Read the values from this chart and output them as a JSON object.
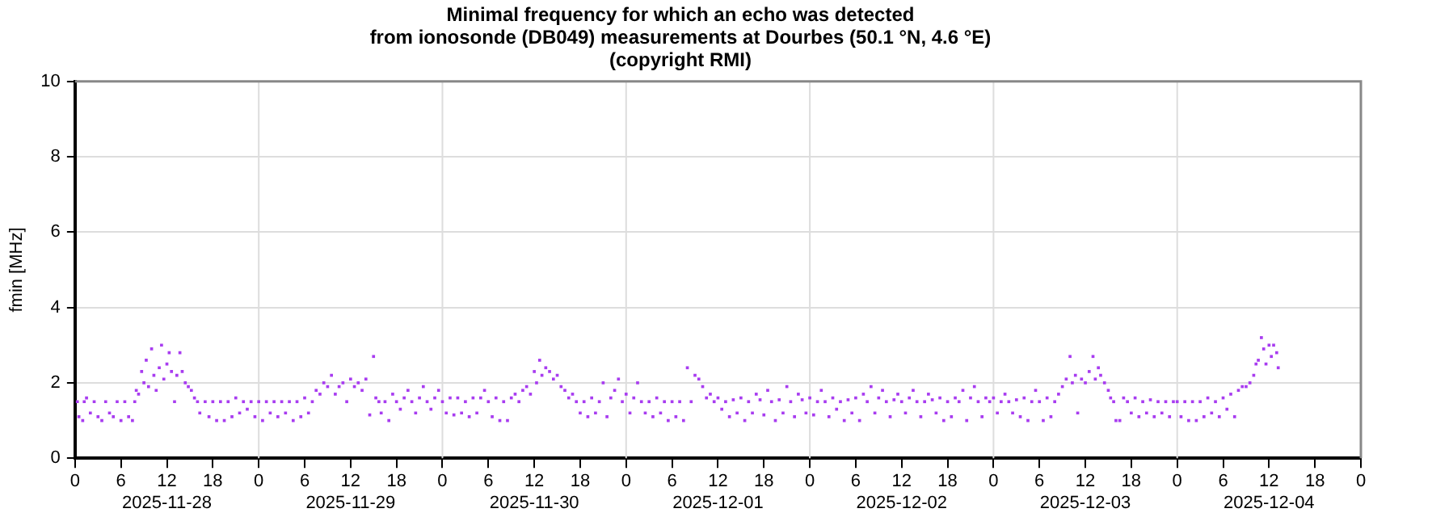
{
  "chart_data": {
    "type": "scatter",
    "title": "Minimal frequency for which an echo was detected\nfrom ionosonde (DB049) measurements at Dourbes (50.1 °N, 4.6 °E)\n(copyright RMI)",
    "ylabel": "fmin [MHz]",
    "xlim": [
      "2025-11-28T00:00",
      "2025-12-05T00:00"
    ],
    "ylim": [
      0,
      10
    ],
    "yticks": [
      0,
      2,
      4,
      6,
      8,
      10
    ],
    "xticks": [
      {
        "value": "2025-11-28T00:00",
        "label": "0"
      },
      {
        "value": "2025-11-28T06:00",
        "label": "6"
      },
      {
        "value": "2025-11-28T12:00",
        "label": "12\n2025-11-28"
      },
      {
        "value": "2025-11-28T18:00",
        "label": "18"
      },
      {
        "value": "2025-11-29T00:00",
        "label": "0"
      },
      {
        "value": "2025-11-29T06:00",
        "label": "6"
      },
      {
        "value": "2025-11-29T12:00",
        "label": "12\n2025-11-29"
      },
      {
        "value": "2025-11-29T18:00",
        "label": "18"
      },
      {
        "value": "2025-11-30T00:00",
        "label": "0"
      },
      {
        "value": "2025-11-30T06:00",
        "label": "6"
      },
      {
        "value": "2025-11-30T12:00",
        "label": "12\n2025-11-30"
      },
      {
        "value": "2025-11-30T18:00",
        "label": "18"
      },
      {
        "value": "2025-12-01T00:00",
        "label": "0"
      },
      {
        "value": "2025-12-01T06:00",
        "label": "6"
      },
      {
        "value": "2025-12-01T12:00",
        "label": "12\n2025-12-01"
      },
      {
        "value": "2025-12-01T18:00",
        "label": "18"
      },
      {
        "value": "2025-12-02T00:00",
        "label": "0"
      },
      {
        "value": "2025-12-02T06:00",
        "label": "6"
      },
      {
        "value": "2025-12-02T12:00",
        "label": "12\n2025-12-02"
      },
      {
        "value": "2025-12-02T18:00",
        "label": "18"
      },
      {
        "value": "2025-12-03T00:00",
        "label": "0"
      },
      {
        "value": "2025-12-03T06:00",
        "label": "6"
      },
      {
        "value": "2025-12-03T12:00",
        "label": "12\n2025-12-03"
      },
      {
        "value": "2025-12-03T18:00",
        "label": "18"
      },
      {
        "value": "2025-12-04T00:00",
        "label": "0"
      },
      {
        "value": "2025-12-04T06:00",
        "label": "6"
      },
      {
        "value": "2025-12-04T12:00",
        "label": "12\n2025-12-04"
      },
      {
        "value": "2025-12-04T18:00",
        "label": "18"
      },
      {
        "value": "2025-12-05T00:00",
        "label": "0"
      }
    ],
    "grid": "y",
    "marker": "square",
    "legend": false,
    "ref_lines": [
      {
        "axis": "x",
        "value": "2025-11-29T00:00",
        "color": "#dddddd"
      },
      {
        "axis": "x",
        "value": "2025-11-30T00:00",
        "color": "#dddddd"
      },
      {
        "axis": "x",
        "value": "2025-12-01T00:00",
        "color": "#dddddd"
      },
      {
        "axis": "x",
        "value": "2025-12-02T00:00",
        "color": "#dddddd"
      },
      {
        "axis": "x",
        "value": "2025-12-03T00:00",
        "color": "#dddddd"
      },
      {
        "axis": "x",
        "value": "2025-12-04T00:00",
        "color": "#dddddd"
      }
    ],
    "series": [
      {
        "color": "#a83cf0",
        "x": [
          "2025-11-28T00:18",
          "2025-11-28T00:30",
          "2025-11-28T01:00",
          "2025-11-28T01:12",
          "2025-11-28T01:30",
          "2025-11-28T02:00",
          "2025-11-28T02:30",
          "2025-11-28T03:00",
          "2025-11-28T03:30",
          "2025-11-28T04:00",
          "2025-11-28T04:30",
          "2025-11-28T05:00",
          "2025-11-28T05:30",
          "2025-11-28T06:00",
          "2025-11-28T06:30",
          "2025-11-28T07:00",
          "2025-11-28T07:30",
          "2025-11-28T07:48",
          "2025-11-28T08:00",
          "2025-11-28T08:18",
          "2025-11-28T08:42",
          "2025-11-28T09:00",
          "2025-11-28T09:18",
          "2025-11-28T09:36",
          "2025-11-28T10:00",
          "2025-11-28T10:18",
          "2025-11-28T10:36",
          "2025-11-28T11:00",
          "2025-11-28T11:18",
          "2025-11-28T11:36",
          "2025-11-28T12:00",
          "2025-11-28T12:18",
          "2025-11-28T12:36",
          "2025-11-28T13:00",
          "2025-11-28T13:18",
          "2025-11-28T13:42",
          "2025-11-28T14:00",
          "2025-11-28T14:24",
          "2025-11-28T14:48",
          "2025-11-28T15:12",
          "2025-11-28T15:36",
          "2025-11-28T16:00",
          "2025-11-28T16:18",
          "2025-11-28T17:00",
          "2025-11-28T17:30",
          "2025-11-28T18:00",
          "2025-11-28T18:30",
          "2025-11-28T19:00",
          "2025-11-28T19:30",
          "2025-11-28T20:00",
          "2025-11-28T20:30",
          "2025-11-28T21:00",
          "2025-11-28T21:30",
          "2025-11-28T22:00",
          "2025-11-28T22:30",
          "2025-11-28T23:00",
          "2025-11-28T23:30",
          "2025-11-29T00:00",
          "2025-11-29T00:30",
          "2025-11-29T01:00",
          "2025-11-29T01:30",
          "2025-11-29T02:00",
          "2025-11-29T02:30",
          "2025-11-29T03:00",
          "2025-11-29T03:30",
          "2025-11-29T04:00",
          "2025-11-29T04:30",
          "2025-11-29T05:00",
          "2025-11-29T05:30",
          "2025-11-29T06:00",
          "2025-11-29T06:30",
          "2025-11-29T07:00",
          "2025-11-29T07:30",
          "2025-11-29T08:00",
          "2025-11-29T08:30",
          "2025-11-29T09:00",
          "2025-11-29T09:30",
          "2025-11-29T10:00",
          "2025-11-29T10:30",
          "2025-11-29T11:00",
          "2025-11-29T11:30",
          "2025-11-29T12:00",
          "2025-11-29T12:30",
          "2025-11-29T13:00",
          "2025-11-29T13:30",
          "2025-11-29T14:00",
          "2025-11-29T14:30",
          "2025-11-29T15:00",
          "2025-11-29T15:18",
          "2025-11-29T15:42",
          "2025-11-29T16:00",
          "2025-11-29T16:30",
          "2025-11-29T17:00",
          "2025-11-29T17:30",
          "2025-11-29T18:00",
          "2025-11-29T18:30",
          "2025-11-29T19:00",
          "2025-11-29T19:30",
          "2025-11-29T20:00",
          "2025-11-29T20:30",
          "2025-11-29T21:00",
          "2025-11-29T21:30",
          "2025-11-29T22:00",
          "2025-11-29T22:30",
          "2025-11-29T23:00",
          "2025-11-29T23:30",
          "2025-11-30T00:00",
          "2025-11-30T00:30",
          "2025-11-30T01:00",
          "2025-11-30T01:30",
          "2025-11-30T02:00",
          "2025-11-30T02:30",
          "2025-11-30T03:00",
          "2025-11-30T03:30",
          "2025-11-30T04:00",
          "2025-11-30T04:30",
          "2025-11-30T05:00",
          "2025-11-30T05:30",
          "2025-11-30T06:00",
          "2025-11-30T06:30",
          "2025-11-30T07:00",
          "2025-11-30T07:30",
          "2025-11-30T08:00",
          "2025-11-30T08:30",
          "2025-11-30T09:00",
          "2025-11-30T09:30",
          "2025-11-30T10:00",
          "2025-11-30T10:30",
          "2025-11-30T11:00",
          "2025-11-30T11:30",
          "2025-11-30T12:00",
          "2025-11-30T12:18",
          "2025-11-30T12:42",
          "2025-11-30T13:00",
          "2025-11-30T13:30",
          "2025-11-30T14:00",
          "2025-11-30T14:30",
          "2025-11-30T15:00",
          "2025-11-30T15:30",
          "2025-11-30T16:00",
          "2025-11-30T16:30",
          "2025-11-30T17:00",
          "2025-11-30T17:30",
          "2025-11-30T18:00",
          "2025-11-30T18:30",
          "2025-11-30T19:00",
          "2025-11-30T19:30",
          "2025-11-30T20:00",
          "2025-11-30T20:30",
          "2025-11-30T21:00",
          "2025-11-30T21:30",
          "2025-11-30T22:00",
          "2025-11-30T22:30",
          "2025-11-30T23:00",
          "2025-11-30T23:30",
          "2025-12-01T00:00",
          "2025-12-01T00:30",
          "2025-12-01T01:00",
          "2025-12-01T01:30",
          "2025-12-01T02:00",
          "2025-12-01T02:30",
          "2025-12-01T03:00",
          "2025-12-01T03:30",
          "2025-12-01T04:00",
          "2025-12-01T04:30",
          "2025-12-01T05:00",
          "2025-12-01T05:30",
          "2025-12-01T06:00",
          "2025-12-01T06:30",
          "2025-12-01T07:00",
          "2025-12-01T07:30",
          "2025-12-01T08:00",
          "2025-12-01T08:30",
          "2025-12-01T09:00",
          "2025-12-01T09:30",
          "2025-12-01T10:00",
          "2025-12-01T10:30",
          "2025-12-01T11:00",
          "2025-12-01T11:30",
          "2025-12-01T12:00",
          "2025-12-01T12:30",
          "2025-12-01T13:00",
          "2025-12-01T13:30",
          "2025-12-01T14:00",
          "2025-12-01T14:30",
          "2025-12-01T15:00",
          "2025-12-01T15:30",
          "2025-12-01T16:00",
          "2025-12-01T16:30",
          "2025-12-01T17:00",
          "2025-12-01T17:30",
          "2025-12-01T18:00",
          "2025-12-01T18:30",
          "2025-12-01T19:00",
          "2025-12-01T19:30",
          "2025-12-01T20:00",
          "2025-12-01T20:30",
          "2025-12-01T21:00",
          "2025-12-01T21:30",
          "2025-12-01T22:00",
          "2025-12-01T22:30",
          "2025-12-01T23:00",
          "2025-12-01T23:30",
          "2025-12-02T00:00",
          "2025-12-02T00:30",
          "2025-12-02T01:00",
          "2025-12-02T01:30",
          "2025-12-02T02:00",
          "2025-12-02T02:30",
          "2025-12-02T03:00",
          "2025-12-02T03:30",
          "2025-12-02T04:00",
          "2025-12-02T04:30",
          "2025-12-02T05:00",
          "2025-12-02T05:30",
          "2025-12-02T06:00",
          "2025-12-02T06:30",
          "2025-12-02T07:00",
          "2025-12-02T07:30",
          "2025-12-02T08:00",
          "2025-12-02T08:30",
          "2025-12-02T09:00",
          "2025-12-02T09:30",
          "2025-12-02T10:00",
          "2025-12-02T10:30",
          "2025-12-02T11:00",
          "2025-12-02T11:30",
          "2025-12-02T12:00",
          "2025-12-02T12:30",
          "2025-12-02T13:00",
          "2025-12-02T13:30",
          "2025-12-02T14:00",
          "2025-12-02T14:30",
          "2025-12-02T15:00",
          "2025-12-02T15:30",
          "2025-12-02T16:00",
          "2025-12-02T16:30",
          "2025-12-02T17:00",
          "2025-12-02T17:30",
          "2025-12-02T18:00",
          "2025-12-02T18:30",
          "2025-12-02T19:00",
          "2025-12-02T19:30",
          "2025-12-02T20:00",
          "2025-12-02T20:30",
          "2025-12-02T21:00",
          "2025-12-02T21:30",
          "2025-12-02T22:00",
          "2025-12-02T22:30",
          "2025-12-02T23:00",
          "2025-12-02T23:30",
          "2025-12-03T00:00",
          "2025-12-03T00:30",
          "2025-12-03T01:00",
          "2025-12-03T01:30",
          "2025-12-03T02:00",
          "2025-12-03T02:30",
          "2025-12-03T03:00",
          "2025-12-03T03:30",
          "2025-12-03T04:00",
          "2025-12-03T04:30",
          "2025-12-03T05:00",
          "2025-12-03T05:30",
          "2025-12-03T06:00",
          "2025-12-03T06:30",
          "2025-12-03T07:00",
          "2025-12-03T07:30",
          "2025-12-03T08:00",
          "2025-12-03T08:30",
          "2025-12-03T09:00",
          "2025-12-03T09:30",
          "2025-12-03T10:00",
          "2025-12-03T10:18",
          "2025-12-03T10:42",
          "2025-12-03T11:00",
          "2025-12-03T11:30",
          "2025-12-03T12:00",
          "2025-12-03T12:30",
          "2025-12-03T13:00",
          "2025-12-03T13:18",
          "2025-12-03T13:42",
          "2025-12-03T14:00",
          "2025-12-03T14:30",
          "2025-12-03T15:00",
          "2025-12-03T15:18",
          "2025-12-03T15:42",
          "2025-12-03T16:00",
          "2025-12-03T16:30",
          "2025-12-03T17:00",
          "2025-12-03T17:30",
          "2025-12-03T18:00",
          "2025-12-03T18:30",
          "2025-12-03T19:00",
          "2025-12-03T19:30",
          "2025-12-03T20:00",
          "2025-12-03T20:30",
          "2025-12-03T21:00",
          "2025-12-03T21:30",
          "2025-12-03T22:00",
          "2025-12-03T22:30",
          "2025-12-03T23:00",
          "2025-12-03T23:30",
          "2025-12-04T00:00",
          "2025-12-04T00:30",
          "2025-12-04T01:00",
          "2025-12-04T01:30",
          "2025-12-04T02:00",
          "2025-12-04T02:30",
          "2025-12-04T03:00",
          "2025-12-04T03:30",
          "2025-12-04T04:00",
          "2025-12-04T04:30",
          "2025-12-04T05:00",
          "2025-12-04T05:30",
          "2025-12-04T06:00",
          "2025-12-04T06:30",
          "2025-12-04T07:00",
          "2025-12-04T07:30",
          "2025-12-04T08:00",
          "2025-12-04T08:30",
          "2025-12-04T09:00",
          "2025-12-04T09:30",
          "2025-12-04T10:00",
          "2025-12-04T10:18",
          "2025-12-04T10:36",
          "2025-12-04T11:00",
          "2025-12-04T11:18",
          "2025-12-04T11:36",
          "2025-12-04T12:00",
          "2025-12-04T12:18",
          "2025-12-04T12:36",
          "2025-12-04T13:00",
          "2025-12-04T13:12"
        ],
        "values": [
          1.5,
          1.1,
          1.0,
          1.5,
          1.6,
          1.2,
          1.5,
          1.1,
          1.0,
          1.5,
          1.2,
          1.1,
          1.5,
          1.0,
          1.5,
          1.1,
          1.0,
          1.5,
          1.8,
          1.7,
          2.3,
          2.0,
          2.6,
          1.9,
          2.9,
          2.2,
          1.8,
          2.4,
          3.0,
          2.1,
          2.5,
          2.8,
          2.3,
          1.5,
          2.2,
          2.8,
          2.3,
          2.0,
          1.9,
          1.8,
          1.6,
          1.5,
          1.2,
          1.5,
          1.1,
          1.5,
          1.0,
          1.5,
          1.0,
          1.5,
          1.1,
          1.6,
          1.2,
          1.5,
          1.3,
          1.5,
          1.1,
          1.5,
          1.0,
          1.5,
          1.2,
          1.5,
          1.1,
          1.5,
          1.2,
          1.5,
          1.0,
          1.5,
          1.1,
          1.6,
          1.2,
          1.5,
          1.8,
          1.7,
          2.0,
          1.9,
          2.2,
          1.7,
          1.9,
          2.0,
          1.5,
          2.1,
          1.9,
          2.0,
          1.8,
          2.1,
          1.15,
          2.7,
          1.6,
          1.5,
          1.2,
          1.5,
          1.0,
          1.7,
          1.5,
          1.3,
          1.6,
          1.8,
          1.5,
          1.2,
          1.6,
          1.9,
          1.5,
          1.3,
          1.6,
          1.8,
          1.5,
          1.2,
          1.6,
          1.15,
          1.6,
          1.2,
          1.5,
          1.1,
          1.6,
          1.2,
          1.6,
          1.8,
          1.5,
          1.1,
          1.6,
          1.0,
          1.5,
          1.0,
          1.6,
          1.7,
          1.5,
          1.8,
          1.9,
          1.7,
          2.3,
          2.0,
          2.6,
          2.2,
          2.4,
          2.3,
          2.1,
          2.2,
          1.9,
          1.8,
          1.6,
          1.7,
          1.5,
          1.2,
          1.5,
          1.1,
          1.6,
          1.2,
          1.5,
          2.0,
          1.1,
          1.6,
          1.8,
          2.1,
          1.5,
          1.7,
          1.2,
          1.6,
          2.0,
          1.5,
          1.2,
          1.5,
          1.1,
          1.6,
          1.2,
          1.5,
          1.0,
          1.5,
          1.1,
          1.5,
          1.0,
          2.4,
          1.5,
          2.2,
          2.1,
          1.9,
          1.6,
          1.7,
          1.5,
          1.6,
          1.3,
          1.5,
          1.1,
          1.55,
          1.2,
          1.6,
          1.0,
          1.5,
          1.2,
          1.7,
          1.55,
          1.15,
          1.8,
          1.5,
          1.0,
          1.55,
          1.2,
          1.9,
          1.5,
          1.1,
          1.7,
          1.55,
          1.2,
          1.6,
          1.15,
          1.5,
          1.8,
          1.5,
          1.1,
          1.6,
          1.3,
          1.5,
          1.0,
          1.55,
          1.2,
          1.6,
          1.0,
          1.7,
          1.5,
          1.9,
          1.2,
          1.6,
          1.8,
          1.5,
          1.1,
          1.55,
          1.7,
          1.5,
          1.2,
          1.6,
          1.8,
          1.5,
          1.1,
          1.5,
          1.7,
          1.55,
          1.2,
          1.6,
          1.0,
          1.5,
          1.1,
          1.6,
          1.5,
          1.8,
          1.0,
          1.6,
          1.9,
          1.5,
          1.1,
          1.6,
          1.5,
          1.6,
          1.2,
          1.5,
          1.7,
          1.5,
          1.2,
          1.55,
          1.1,
          1.6,
          1.0,
          1.5,
          1.8,
          1.5,
          1.0,
          1.6,
          1.1,
          1.5,
          1.7,
          1.9,
          2.1,
          2.7,
          2.0,
          2.2,
          1.2,
          2.1,
          2.0,
          2.3,
          2.7,
          2.1,
          2.4,
          2.2,
          2.0,
          1.8,
          1.6,
          1.5,
          1.0,
          1.0,
          1.6,
          1.5,
          1.2,
          1.6,
          1.1,
          1.5,
          1.2,
          1.55,
          1.1,
          1.5,
          1.2,
          1.5,
          1.1,
          1.5,
          1.5,
          1.1,
          1.5,
          1.0,
          1.5,
          1.0,
          1.5,
          1.1,
          1.6,
          1.2,
          1.5,
          1.1,
          1.6,
          1.3,
          1.7,
          1.1,
          1.8,
          1.9,
          1.9,
          2.0,
          2.2,
          2.5,
          2.6,
          3.2,
          2.9,
          2.5,
          3.0,
          2.7,
          3.0,
          2.8,
          2.4
        ]
      }
    ]
  }
}
